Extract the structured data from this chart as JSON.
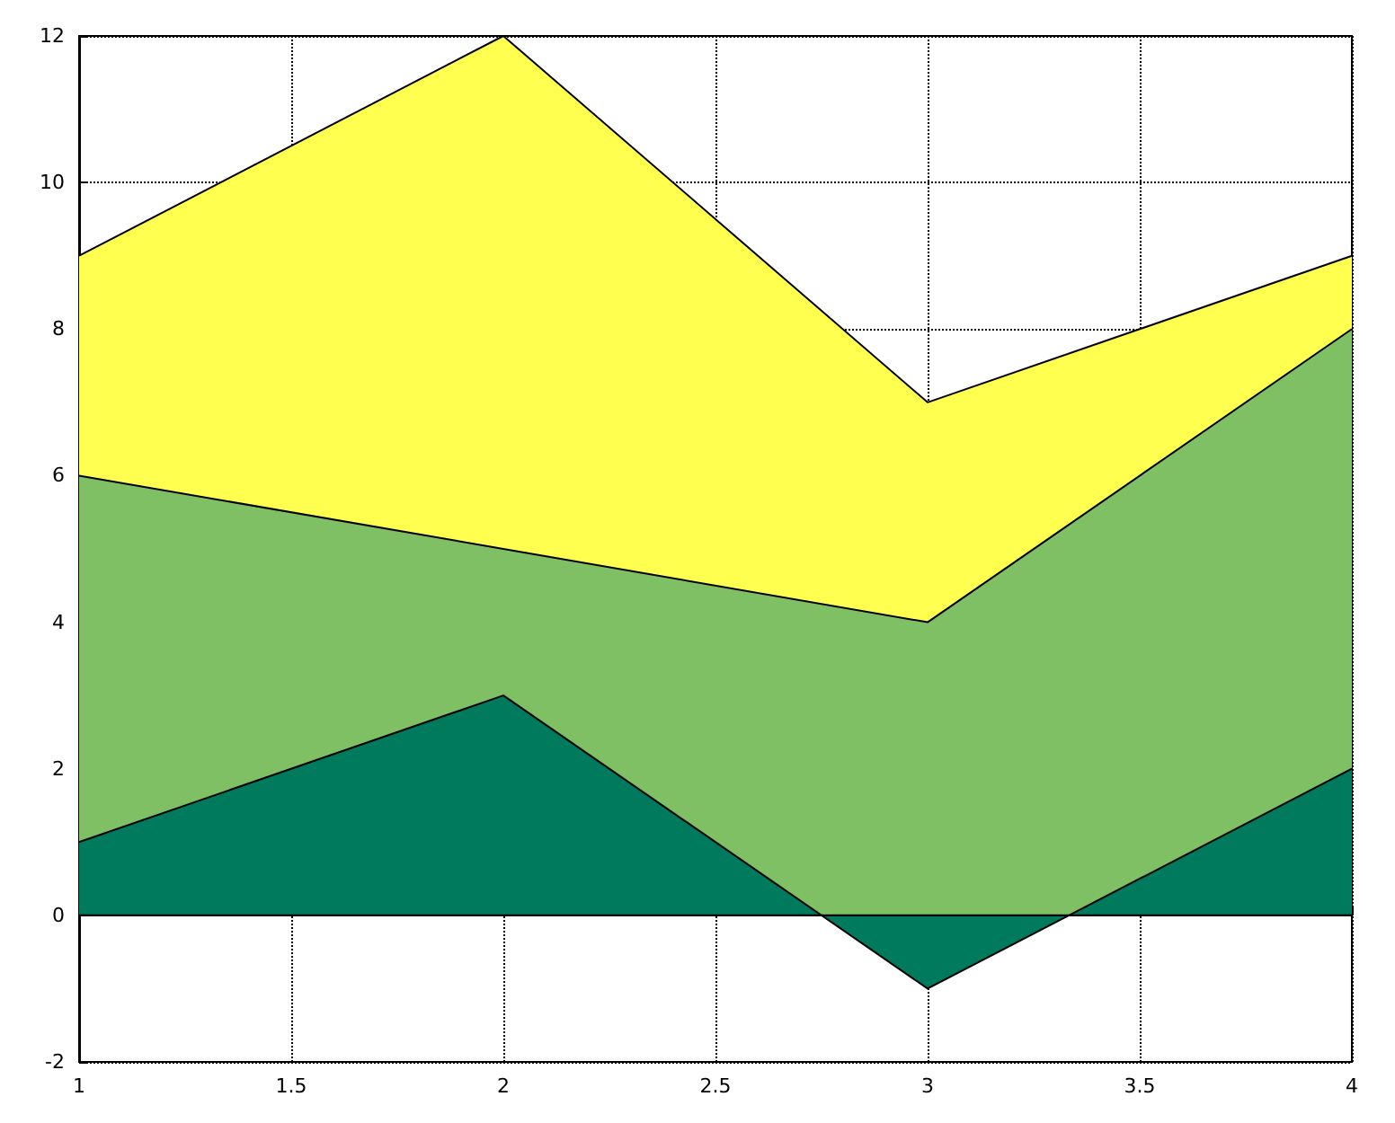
{
  "chart_data": {
    "type": "area",
    "stacked": true,
    "x": [
      1,
      2,
      3,
      4
    ],
    "series": [
      {
        "color": "#007a5c",
        "values": [
          1,
          3,
          -1,
          2
        ]
      },
      {
        "color": "#80c064",
        "values": [
          5,
          2,
          5,
          6
        ]
      },
      {
        "color": "#ffff50",
        "values": [
          3,
          7,
          3,
          1
        ]
      }
    ],
    "xlim": [
      1,
      4
    ],
    "xticks": [
      1,
      1.5,
      2,
      2.5,
      3,
      3.5,
      4
    ],
    "ylim": [
      -2,
      12
    ],
    "yticks": [
      -2,
      0,
      2,
      4,
      6,
      8,
      10,
      12
    ],
    "grid": true,
    "ref_lines": [
      {
        "axis": "y",
        "value": 0,
        "color": "#000000",
        "line_style": "solid"
      }
    ]
  }
}
